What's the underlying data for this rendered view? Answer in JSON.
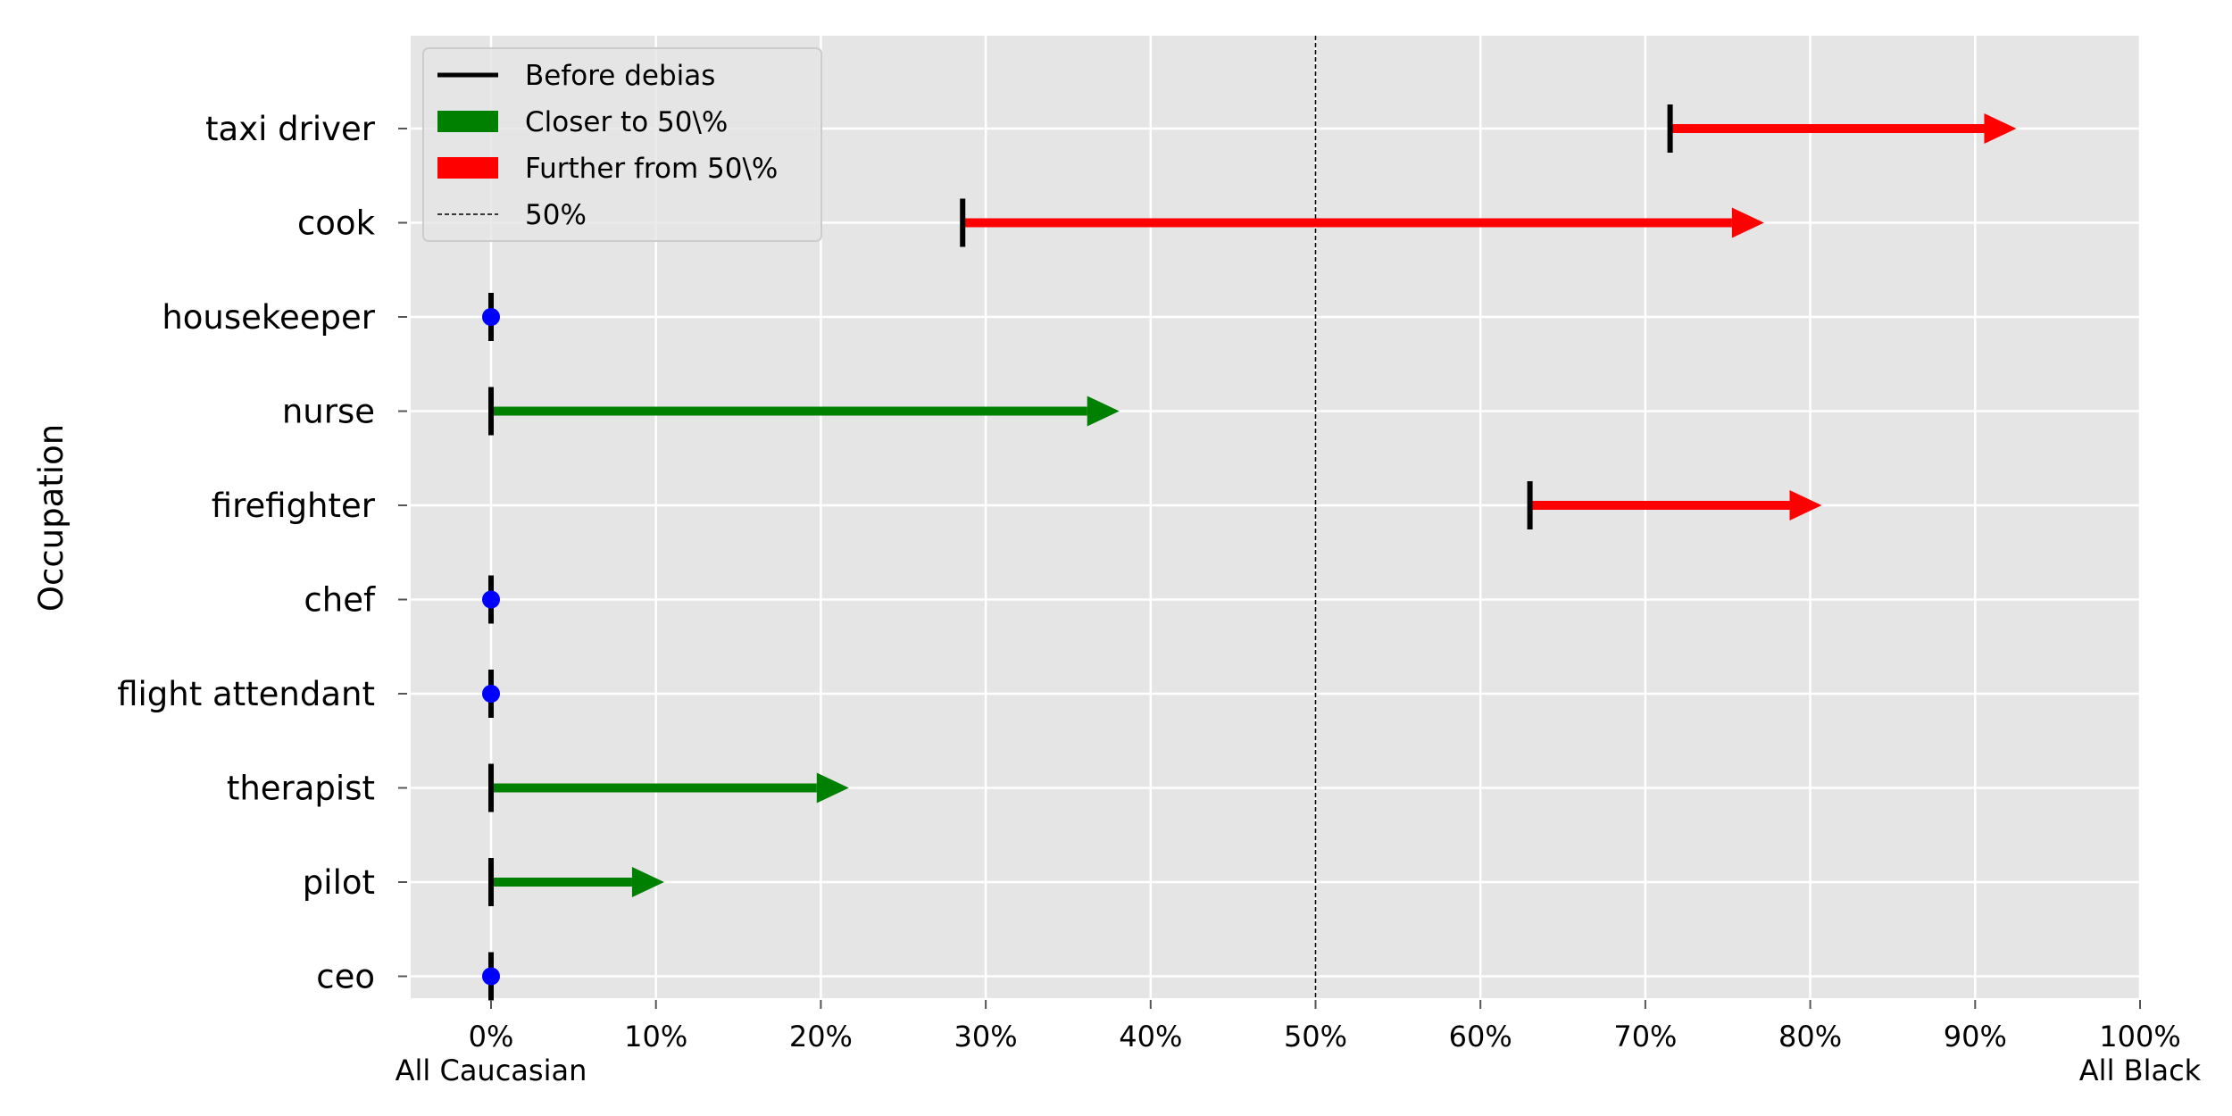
{
  "chart_data": {
    "type": "arrow",
    "ylabel": "Occupation",
    "xlim": [
      -5,
      100
    ],
    "x_ticks": [
      0,
      10,
      20,
      30,
      40,
      50,
      60,
      70,
      80,
      90,
      100
    ],
    "x_tick_labels": [
      "0%",
      "10%",
      "20%",
      "30%",
      "40%",
      "50%",
      "60%",
      "70%",
      "80%",
      "90%",
      "100%"
    ],
    "x_end_labels": {
      "left": "All Caucasian",
      "right": "All Black"
    },
    "reference_line": {
      "value": 50,
      "label": "50%"
    },
    "categories": [
      "taxi driver",
      "cook",
      "housekeeper",
      "nurse",
      "firefighter",
      "chef",
      "flight attendant",
      "therapist",
      "pilot",
      "ceo"
    ],
    "display_labels": [
      "taxi driver",
      "cook",
      "housekeeper",
      "nurse  ",
      "firefighter",
      "chef",
      "flight attendant",
      "therapist",
      "pilot  ",
      "ceo"
    ],
    "before": [
      71.5,
      28.6,
      0,
      0,
      63,
      0,
      0,
      0,
      0,
      0
    ],
    "after": [
      92.5,
      77.2,
      0,
      38.1,
      80.7,
      0,
      0,
      21.7,
      10.5,
      0
    ],
    "colors": {
      "closer": "#008000",
      "further": "#ff0000",
      "unchanged": "#0000ff",
      "before": "#000000"
    },
    "legend": {
      "position": "top-left",
      "entries": [
        {
          "label": "Before debias",
          "style": "line",
          "color": "#000000"
        },
        {
          "label": "Closer to 50\\%",
          "style": "patch",
          "color": "#008000"
        },
        {
          "label": "Further from 50\\%",
          "style": "patch",
          "color": "#ff0000"
        },
        {
          "label": "50%",
          "style": "dashed",
          "color": "#000000"
        }
      ]
    },
    "grid": true,
    "background": "#e5e5e5"
  }
}
